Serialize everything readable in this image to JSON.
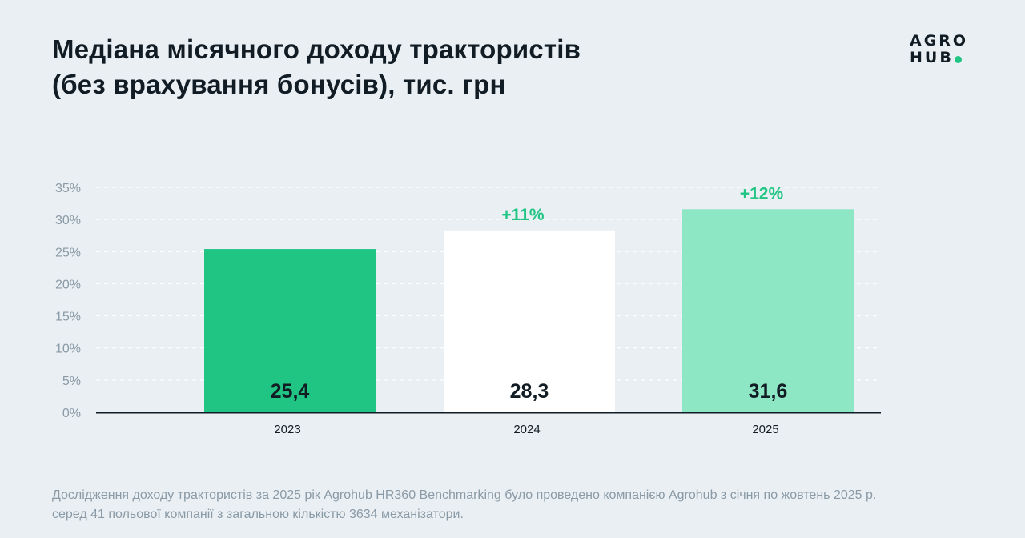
{
  "title_lines": [
    "Медіана місячного доходу трактористів",
    "(без врахування бонусів), тис. грн"
  ],
  "logo": {
    "line1": "AGRO",
    "line2": "HUB",
    "dot_color": "#20c584"
  },
  "footnote_lines": [
    "Дослідження доходу трактористів за 2025 рік Agrohub HR360 Benchmarking було проведено компанією Agrohub з січня по жовтень 2025 р.",
    "серед 41 польової компанії з загальною кількістю 3634 механізатори."
  ],
  "chart_data": {
    "type": "bar",
    "categories": [
      "2023",
      "2024",
      "2025"
    ],
    "values": [
      25.4,
      28.3,
      31.6
    ],
    "value_labels": [
      "25,4",
      "28,3",
      "31,6"
    ],
    "growth_labels": [
      "",
      "+11%",
      "+12%"
    ],
    "bar_colors": [
      "#20c584",
      "#ffffff",
      "#8de6c4"
    ],
    "growth_color": "#20c584",
    "y_ticks": [
      0,
      5,
      10,
      15,
      20,
      25,
      30,
      35
    ],
    "y_tick_labels": [
      "0%",
      "5%",
      "10%",
      "15%",
      "20%",
      "25%",
      "30%",
      "35%"
    ],
    "ylim": [
      0,
      35
    ],
    "grid": true
  }
}
